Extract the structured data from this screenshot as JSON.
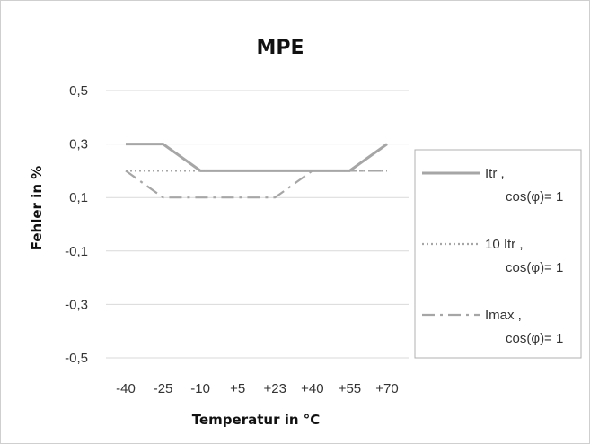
{
  "chart_data": {
    "type": "line",
    "title": "MPE",
    "xlabel": "Temperatur in °C",
    "ylabel": "Fehler in %",
    "categories": [
      "-40",
      "-25",
      "-10",
      "+5",
      "+23",
      "+40",
      "+55",
      "+70"
    ],
    "yticks": [
      "0,5",
      "0,3",
      "0,1",
      "-0,1",
      "-0,3",
      "-0,5"
    ],
    "ylim": [
      -0.5,
      0.5
    ],
    "grid": true,
    "legend_position": "right",
    "series": [
      {
        "name": "Itr , cos(φ)= 1",
        "legend_line1": "Itr ,",
        "legend_line2": "cos(φ)= 1",
        "style": "solid",
        "color": "#a6a6a6",
        "values": [
          0.3,
          0.3,
          0.2,
          0.2,
          0.2,
          0.2,
          0.2,
          0.3
        ]
      },
      {
        "name": "10 Itr , cos(φ)= 1",
        "legend_line1": "10 Itr ,",
        "legend_line2": "cos(φ)= 1",
        "style": "dotted",
        "color": "#a6a6a6",
        "values": [
          0.2,
          0.2,
          0.2,
          0.2,
          0.2,
          0.2,
          0.2,
          0.2
        ]
      },
      {
        "name": "Imax , cos(φ)= 1",
        "legend_line1": "Imax ,",
        "legend_line2": "cos(φ)= 1",
        "style": "dashdot",
        "color": "#a6a6a6",
        "values": [
          0.2,
          0.1,
          0.1,
          0.1,
          0.1,
          0.2,
          0.2,
          0.2
        ]
      }
    ]
  }
}
